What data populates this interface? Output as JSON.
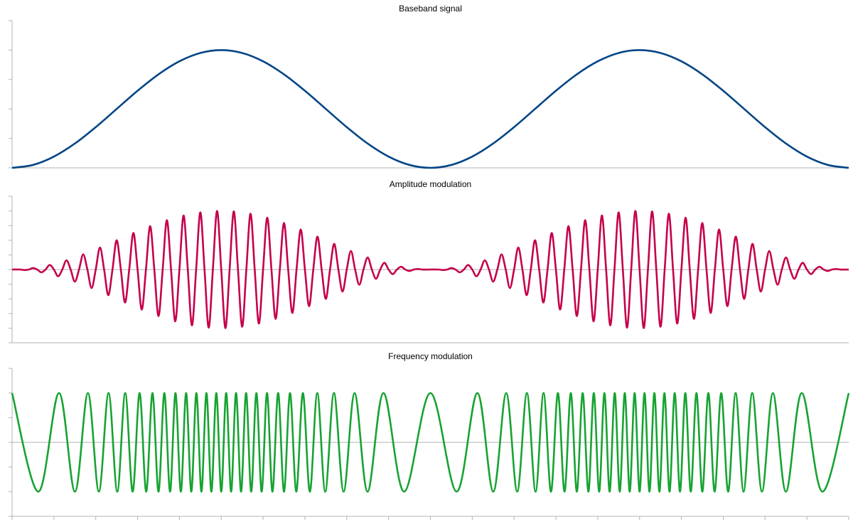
{
  "chart_data": [
    {
      "type": "line",
      "title": "Baseband signal",
      "color": "#004586",
      "ylim": [
        0,
        1.25
      ],
      "yticks": [
        0,
        0.25,
        0.5,
        0.75,
        1,
        1.25
      ],
      "values": [
        0,
        0.0245,
        0.0955,
        0.2061,
        0.3455,
        0.5,
        0.6545,
        0.7939,
        0.9045,
        0.9755,
        1,
        0.9755,
        0.9045,
        0.7939,
        0.6545,
        0.5,
        0.3455,
        0.2061,
        0.0955,
        0.0245,
        0,
        0.0245,
        0.0955,
        0.2061,
        0.3455,
        0.5,
        0.6545,
        0.7939,
        0.9045,
        0.9755,
        1,
        0.9755,
        0.9045,
        0.7939,
        0.6545,
        0.5,
        0.3455,
        0.2061,
        0.0955,
        0.0245,
        0
      ]
    },
    {
      "type": "line",
      "title": "Amplitude modulation",
      "color": "#c5004b",
      "ylim": [
        -1.25,
        1.25
      ],
      "yticks": [
        -1.25,
        -1,
        -0.75,
        -0.5,
        -0.25,
        0,
        0.25,
        0.5,
        0.75,
        1,
        1.25
      ],
      "values": [
        0,
        0.001,
        0,
        -0.0089,
        0,
        0.0245,
        0,
        -0.0476,
        0,
        0.0778,
        0,
        -0.1147,
        0,
        0.1577,
        0,
        -0.2061,
        0,
        0.2591,
        0,
        -0.3159,
        0,
        0.3757,
        0,
        -0.4373,
        0,
        0.5,
        0,
        -0.5627,
        0,
        0.6243,
        0,
        -0.6841,
        0,
        0.7409,
        0,
        -0.7939,
        0,
        0.8423,
        0,
        -0.8853,
        0,
        0.9222,
        0,
        -0.9524,
        0,
        0.9755,
        0,
        -0.9911,
        0,
        0.999,
        0,
        -0.999,
        0,
        0.9911,
        0,
        -0.9755,
        0,
        0.9524,
        0,
        -0.9222,
        0,
        0.8853,
        0,
        -0.8423,
        0,
        0.7939,
        0,
        -0.7409,
        0,
        0.6841,
        0,
        -0.6243,
        0,
        0.5627,
        0,
        -0.5,
        0,
        0.4373,
        0,
        -0.3757,
        0,
        0.3159,
        0,
        -0.2591,
        0,
        0.2061,
        0,
        -0.1577,
        0,
        0.1147,
        0,
        -0.0778,
        0,
        0.0476,
        0,
        -0.0245,
        0,
        0.0089,
        0,
        -0.001,
        0,
        0.001,
        0,
        -0.0089,
        0,
        0.0245,
        0,
        -0.0476,
        0,
        0.0778,
        0,
        -0.1147,
        0,
        0.1577,
        0,
        -0.2061,
        0,
        0.2591,
        0,
        -0.3159,
        0,
        0.3757,
        0,
        -0.4373,
        0,
        0.5,
        0,
        -0.5627,
        0,
        0.6243,
        0,
        -0.6841,
        0,
        0.7409,
        0,
        -0.7939,
        0,
        0.8423,
        0,
        -0.8853,
        0,
        0.9222,
        0,
        -0.9524,
        0,
        0.9755,
        0,
        -0.9911,
        0,
        0.999,
        0,
        -0.999,
        0,
        0.9911,
        0,
        -0.9755,
        0,
        0.9524,
        0,
        -0.9222,
        0,
        0.8853,
        0,
        -0.8423,
        0,
        0.7939,
        0,
        -0.7409,
        0,
        0.6841,
        0,
        -0.6243,
        0,
        0.5627,
        0,
        -0.5,
        0,
        0.4373,
        0,
        -0.3757,
        0,
        0.3159,
        0,
        -0.2591,
        0,
        0.2061,
        0,
        -0.1577,
        0,
        0.1147,
        0,
        -0.0778,
        0,
        0.0476,
        0,
        -0.0245,
        0,
        0.0089,
        0,
        -0.001,
        0
      ]
    },
    {
      "type": "line",
      "title": "Frequency modulation",
      "color": "#17a332",
      "ylim": [
        -1.5,
        1.5
      ],
      "yticks": [
        -1.5,
        -1,
        -0.5,
        0,
        0.5,
        1,
        1.5
      ],
      "xlim": [
        0,
        100
      ],
      "xticks": [
        0,
        5,
        10,
        15,
        20,
        25,
        30,
        35,
        40,
        45,
        50,
        55,
        60,
        65,
        70,
        75,
        80,
        85,
        90,
        95,
        100
      ],
      "x": [
        0,
        3.14,
        5.61,
        7.51,
        9.06,
        10.37,
        11.53,
        12.57,
        13.52,
        14.41,
        15.24,
        16.03,
        16.78,
        17.5,
        18.2,
        18.88,
        19.53,
        20.17,
        20.8,
        21.42,
        22.03,
        22.63,
        23.23,
        23.82,
        24.41,
        25,
        25.59,
        26.18,
        26.77,
        27.37,
        27.97,
        28.58,
        29.2,
        29.83,
        30.47,
        31.12,
        31.8,
        32.5,
        33.22,
        33.97,
        34.76,
        35.59,
        36.48,
        37.43,
        38.47,
        39.63,
        40.94,
        42.49,
        44.39,
        46.86,
        50,
        53.14,
        55.61,
        57.51,
        59.06,
        60.37,
        61.53,
        62.57,
        63.52,
        64.41,
        65.24,
        66.03,
        66.78,
        67.5,
        68.2,
        68.88,
        69.53,
        70.17,
        70.8,
        71.42,
        72.03,
        72.63,
        73.23,
        73.82,
        74.41,
        75,
        75.59,
        76.18,
        76.77,
        77.37,
        77.97,
        78.58,
        79.2,
        79.83,
        80.47,
        81.12,
        81.8,
        82.5,
        83.22,
        83.97,
        84.76,
        85.59,
        86.48,
        87.43,
        88.47,
        89.63,
        90.94,
        92.49,
        94.39,
        96.86,
        100
      ],
      "values": [
        1,
        -1,
        1,
        -1,
        1,
        -1,
        1,
        -1,
        1,
        -1,
        1,
        -1,
        1,
        -1,
        1,
        -1,
        1,
        -1,
        1,
        -1,
        1,
        -1,
        1,
        -1,
        1,
        -1,
        1,
        -1,
        1,
        -1,
        1,
        -1,
        1,
        -1,
        1,
        -1,
        1,
        -1,
        1,
        -1,
        1,
        -1,
        1,
        -1,
        1,
        -1,
        1,
        -1,
        1,
        -1,
        1,
        -1,
        1,
        -1,
        1,
        -1,
        1,
        -1,
        1,
        -1,
        1,
        -1,
        1,
        -1,
        1,
        -1,
        1,
        -1,
        1,
        -1,
        1,
        -1,
        1,
        -1,
        1,
        -1,
        1,
        -1,
        1,
        -1,
        1,
        -1,
        1,
        -1,
        1,
        -1,
        1,
        -1,
        1,
        -1,
        1,
        -1,
        1,
        -1,
        1,
        -1,
        1,
        -1,
        1,
        -1,
        1
      ]
    }
  ]
}
